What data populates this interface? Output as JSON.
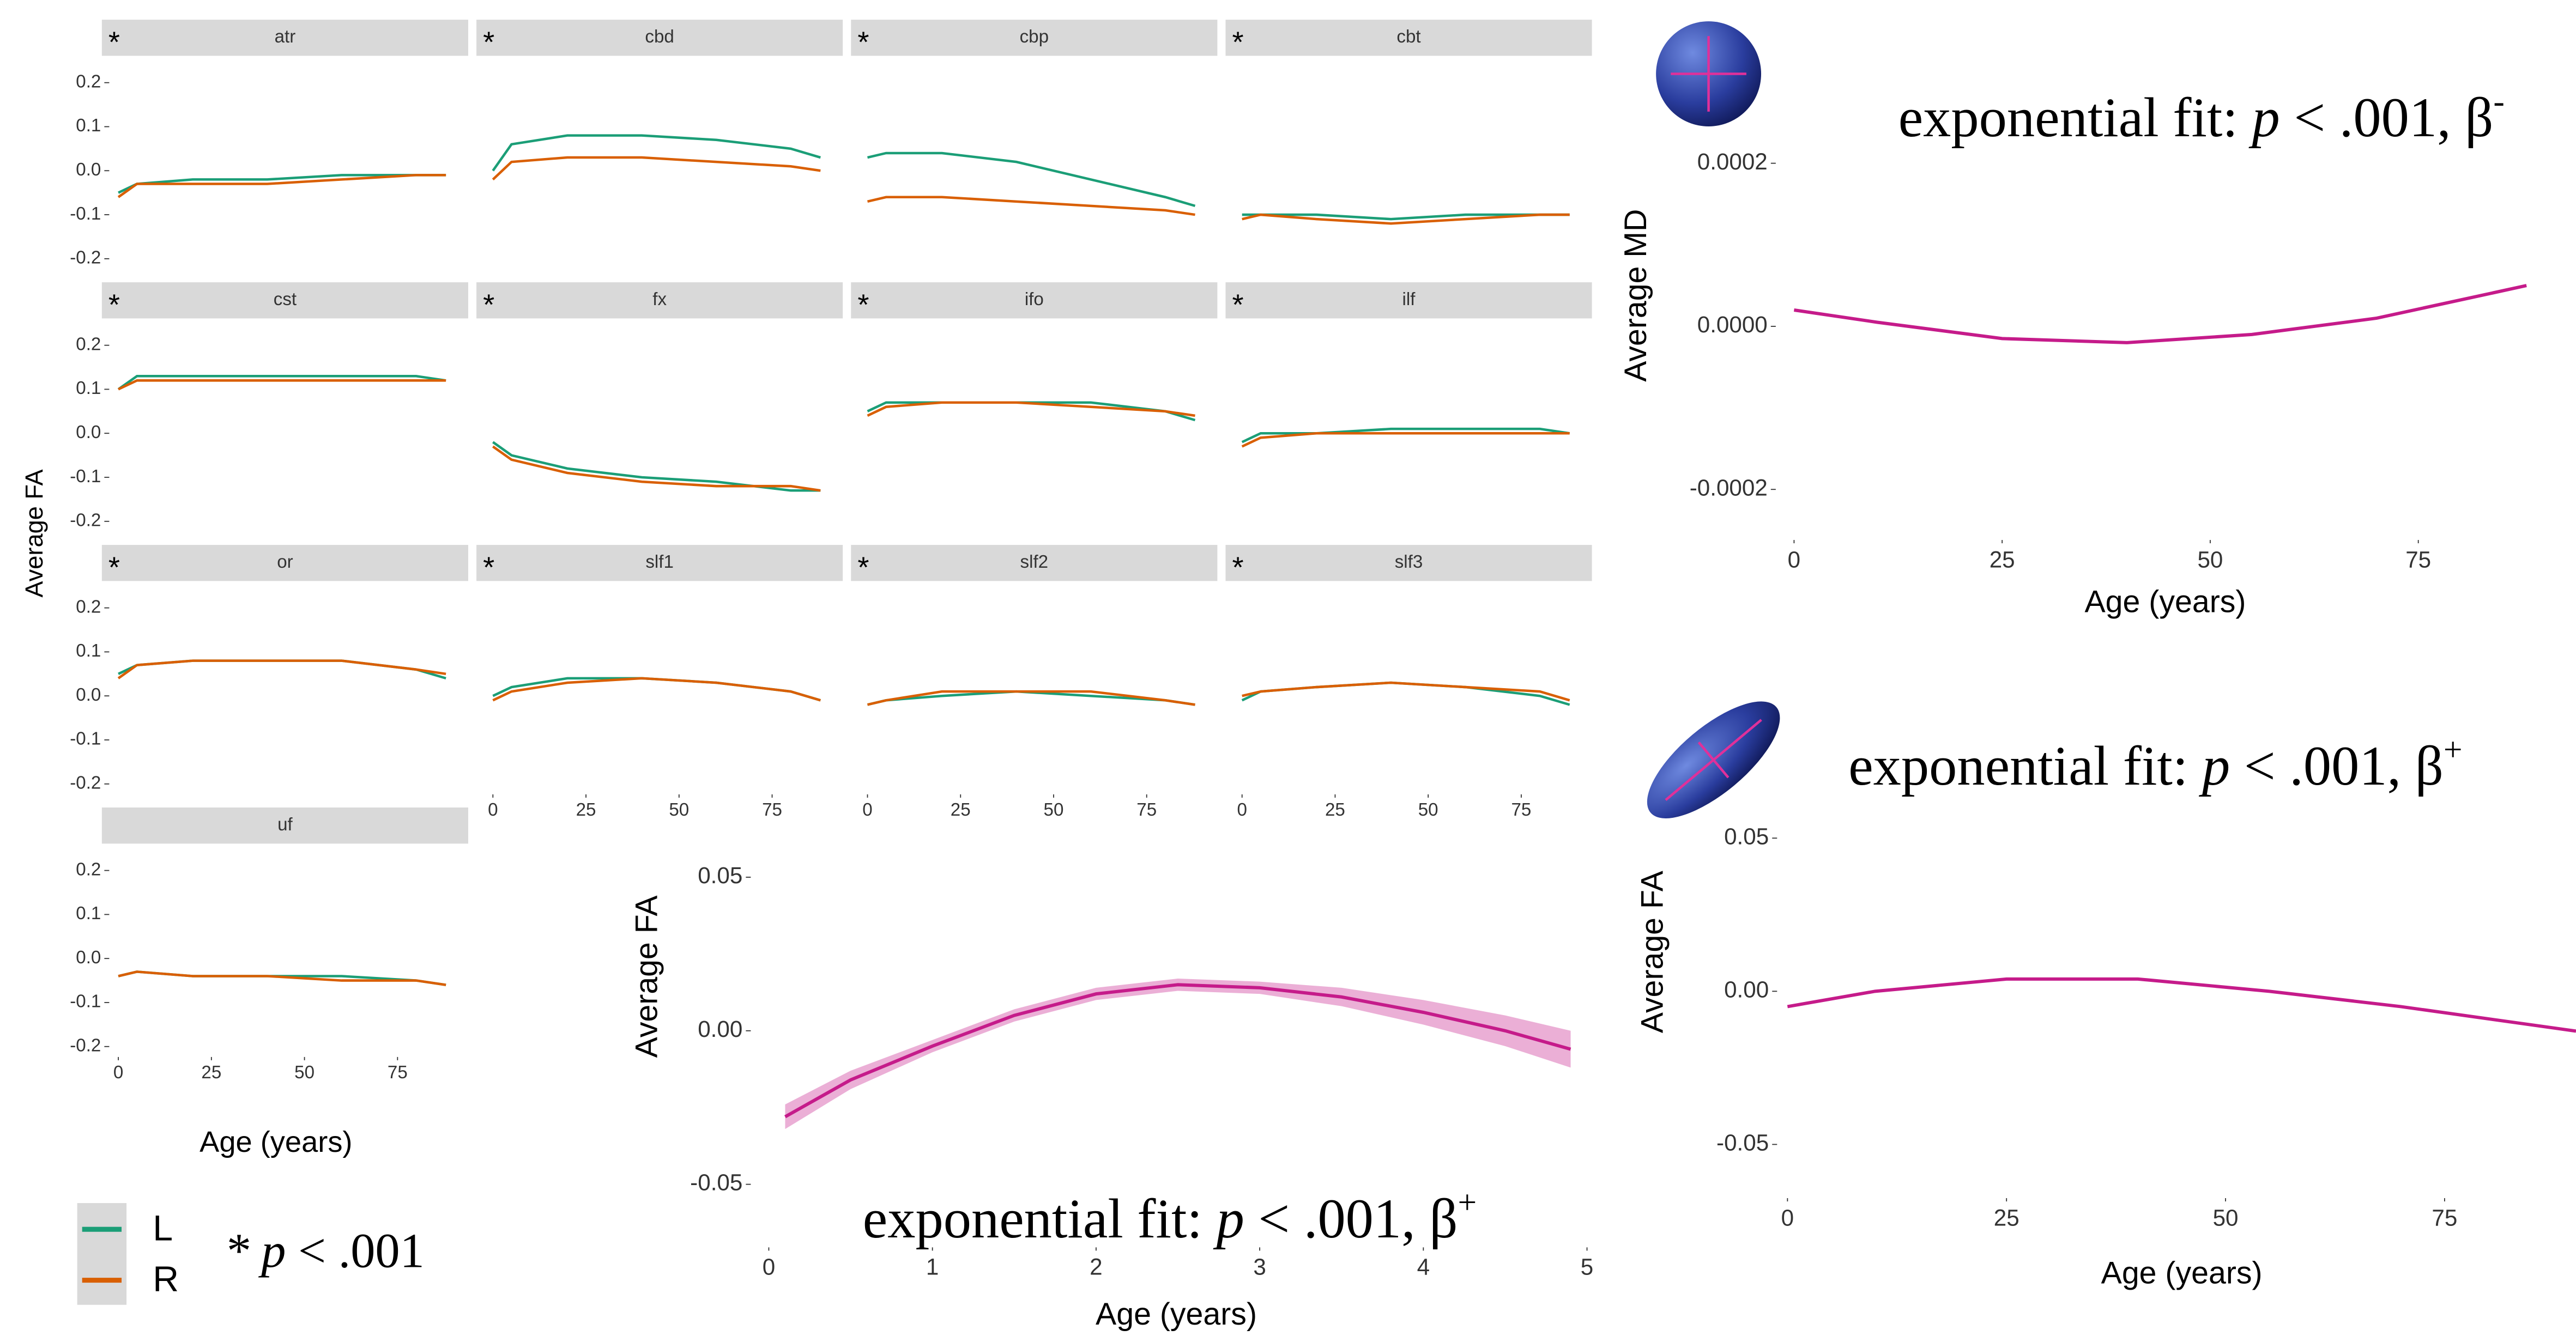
{
  "chart_data": [
    {
      "type": "facet-line",
      "y_label": "Average FA",
      "x_label": "Age (years)",
      "xlim": [
        -2,
        92
      ],
      "xticks": [
        0,
        25,
        50,
        75
      ],
      "ylim": [
        -0.22,
        0.22
      ],
      "yticks": [
        -0.2,
        -0.1,
        {
          "value": 0,
          "label": "0.0"
        },
        0.1,
        0.2
      ],
      "series": [
        {
          "name": "L",
          "color": "#1b9e77"
        },
        {
          "name": "R",
          "color": "#d95f02"
        }
      ],
      "note": [
        "*",
        "p",
        " < .001"
      ],
      "x": [
        0,
        5,
        20,
        40,
        60,
        80,
        88
      ],
      "facets": [
        {
          "title": "atr",
          "marker": "*",
          "lines": [
            [
              -0.05,
              -0.03,
              -0.02,
              -0.02,
              -0.01,
              -0.01,
              -0.01
            ],
            [
              -0.06,
              -0.03,
              -0.03,
              -0.03,
              -0.02,
              -0.01,
              -0.01
            ]
          ]
        },
        {
          "title": "cbd",
          "marker": "*",
          "lines": [
            [
              0.0,
              0.06,
              0.08,
              0.08,
              0.07,
              0.05,
              0.03
            ],
            [
              -0.02,
              0.02,
              0.03,
              0.03,
              0.02,
              0.01,
              0.0
            ]
          ]
        },
        {
          "title": "cbp",
          "marker": "*",
          "lines": [
            [
              0.03,
              0.04,
              0.04,
              0.02,
              -0.02,
              -0.06,
              -0.08
            ],
            [
              -0.07,
              -0.06,
              -0.06,
              -0.07,
              -0.08,
              -0.09,
              -0.1
            ]
          ]
        },
        {
          "title": "cbt",
          "marker": "*",
          "lines": [
            [
              -0.1,
              -0.1,
              -0.1,
              -0.11,
              -0.1,
              -0.1,
              -0.1
            ],
            [
              -0.11,
              -0.1,
              -0.11,
              -0.12,
              -0.11,
              -0.1,
              -0.1
            ]
          ]
        },
        {
          "title": "cst",
          "marker": "*",
          "lines": [
            [
              0.1,
              0.13,
              0.13,
              0.13,
              0.13,
              0.13,
              0.12
            ],
            [
              0.1,
              0.12,
              0.12,
              0.12,
              0.12,
              0.12,
              0.12
            ]
          ]
        },
        {
          "title": "fx",
          "marker": "*",
          "lines": [
            [
              -0.02,
              -0.05,
              -0.08,
              -0.1,
              -0.11,
              -0.13,
              -0.13
            ],
            [
              -0.03,
              -0.06,
              -0.09,
              -0.11,
              -0.12,
              -0.12,
              -0.13
            ]
          ]
        },
        {
          "title": "ifo",
          "marker": "*",
          "lines": [
            [
              0.05,
              0.07,
              0.07,
              0.07,
              0.07,
              0.05,
              0.03
            ],
            [
              0.04,
              0.06,
              0.07,
              0.07,
              0.06,
              0.05,
              0.04
            ]
          ]
        },
        {
          "title": "ilf",
          "marker": "*",
          "lines": [
            [
              -0.02,
              0.0,
              0.0,
              0.01,
              0.01,
              0.01,
              0.0
            ],
            [
              -0.03,
              -0.01,
              0.0,
              0.0,
              0.0,
              0.0,
              0.0
            ]
          ]
        },
        {
          "title": "or",
          "marker": "*",
          "lines": [
            [
              0.05,
              0.07,
              0.08,
              0.08,
              0.08,
              0.06,
              0.04
            ],
            [
              0.04,
              0.07,
              0.08,
              0.08,
              0.08,
              0.06,
              0.05
            ]
          ]
        },
        {
          "title": "slf1",
          "marker": "*",
          "lines": [
            [
              0.0,
              0.02,
              0.04,
              0.04,
              0.03,
              0.01,
              -0.01
            ],
            [
              -0.01,
              0.01,
              0.03,
              0.04,
              0.03,
              0.01,
              -0.01
            ]
          ]
        },
        {
          "title": "slf2",
          "marker": "*",
          "lines": [
            [
              -0.02,
              -0.01,
              0.0,
              0.01,
              0.0,
              -0.01,
              -0.02
            ],
            [
              -0.02,
              -0.01,
              0.01,
              0.01,
              0.01,
              -0.01,
              -0.02
            ]
          ]
        },
        {
          "title": "slf3",
          "marker": "*",
          "lines": [
            [
              -0.01,
              0.01,
              0.02,
              0.03,
              0.02,
              0.0,
              -0.02
            ],
            [
              0.0,
              0.01,
              0.02,
              0.03,
              0.02,
              0.01,
              -0.01
            ]
          ]
        },
        {
          "title": "uf",
          "lines": [
            [
              -0.04,
              -0.03,
              -0.04,
              -0.04,
              -0.04,
              -0.05,
              -0.06
            ],
            [
              -0.04,
              -0.03,
              -0.04,
              -0.04,
              -0.05,
              -0.05,
              -0.06
            ]
          ]
        }
      ]
    },
    {
      "type": "line",
      "title": [
        "exponential fit: ",
        "p",
        " < .001, β",
        "-"
      ],
      "y_label": "Average MD",
      "x_label": "Age (years)",
      "xlim": [
        -2,
        90
      ],
      "xticks": [
        0,
        25,
        50,
        75
      ],
      "ylim": [
        -0.00026,
        0.00021
      ],
      "yticks": [
        {
          "value": -0.0002,
          "label": "-0.0002"
        },
        {
          "value": 0,
          "label": "0.0000"
        },
        0.0002
      ],
      "x": [
        0,
        10,
        25,
        40,
        55,
        70,
        88
      ],
      "color": "#c51b8a",
      "values": [
        2e-05,
        5e-06,
        -1.5e-05,
        -2e-05,
        -1e-05,
        1e-05,
        5e-05
      ]
    },
    {
      "type": "line",
      "title": [
        "exponential fit: ",
        "p",
        " < .001, β",
        "+"
      ],
      "y_label": "Average FA",
      "x_label": "Age (years)",
      "xlim": [
        -1,
        90
      ],
      "xticks": [
        0,
        25,
        50,
        75
      ],
      "ylim": [
        -0.067,
        0.06
      ],
      "yticks": [
        -0.05,
        {
          "value": 0,
          "label": "0.00"
        },
        0.05
      ],
      "x": [
        0,
        10,
        25,
        40,
        55,
        70,
        90
      ],
      "color": "#c51b8a",
      "values": [
        -0.005,
        0.0,
        0.004,
        0.004,
        0.0,
        -0.005,
        -0.013
      ]
    },
    {
      "type": "line",
      "title": [
        "exponential fit: ",
        "p",
        " < .001, β",
        "+"
      ],
      "y_label": "Average FA",
      "x_label": "Age (years)",
      "xlim": [
        -0.1,
        5
      ],
      "xticks": [
        0,
        1,
        2,
        3,
        4,
        5
      ],
      "ylim": [
        -0.07,
        0.058
      ],
      "yticks": [
        -0.05,
        {
          "value": 0,
          "label": "0.00"
        },
        0.05
      ],
      "x": [
        0.1,
        0.5,
        1,
        1.5,
        2,
        2.5,
        3,
        3.5,
        4,
        4.5,
        4.9
      ],
      "color": "#c51b8a",
      "values": [
        -0.028,
        -0.016,
        -0.005,
        0.005,
        0.012,
        0.015,
        0.014,
        0.011,
        0.006,
        0.0,
        -0.006
      ],
      "ci_lower": [
        -0.032,
        -0.019,
        -0.007,
        0.003,
        0.01,
        0.013,
        0.012,
        0.008,
        0.002,
        -0.005,
        -0.012
      ],
      "ci_upper": [
        -0.024,
        -0.013,
        -0.003,
        0.007,
        0.014,
        0.017,
        0.016,
        0.014,
        0.01,
        0.005,
        0.0
      ]
    }
  ]
}
